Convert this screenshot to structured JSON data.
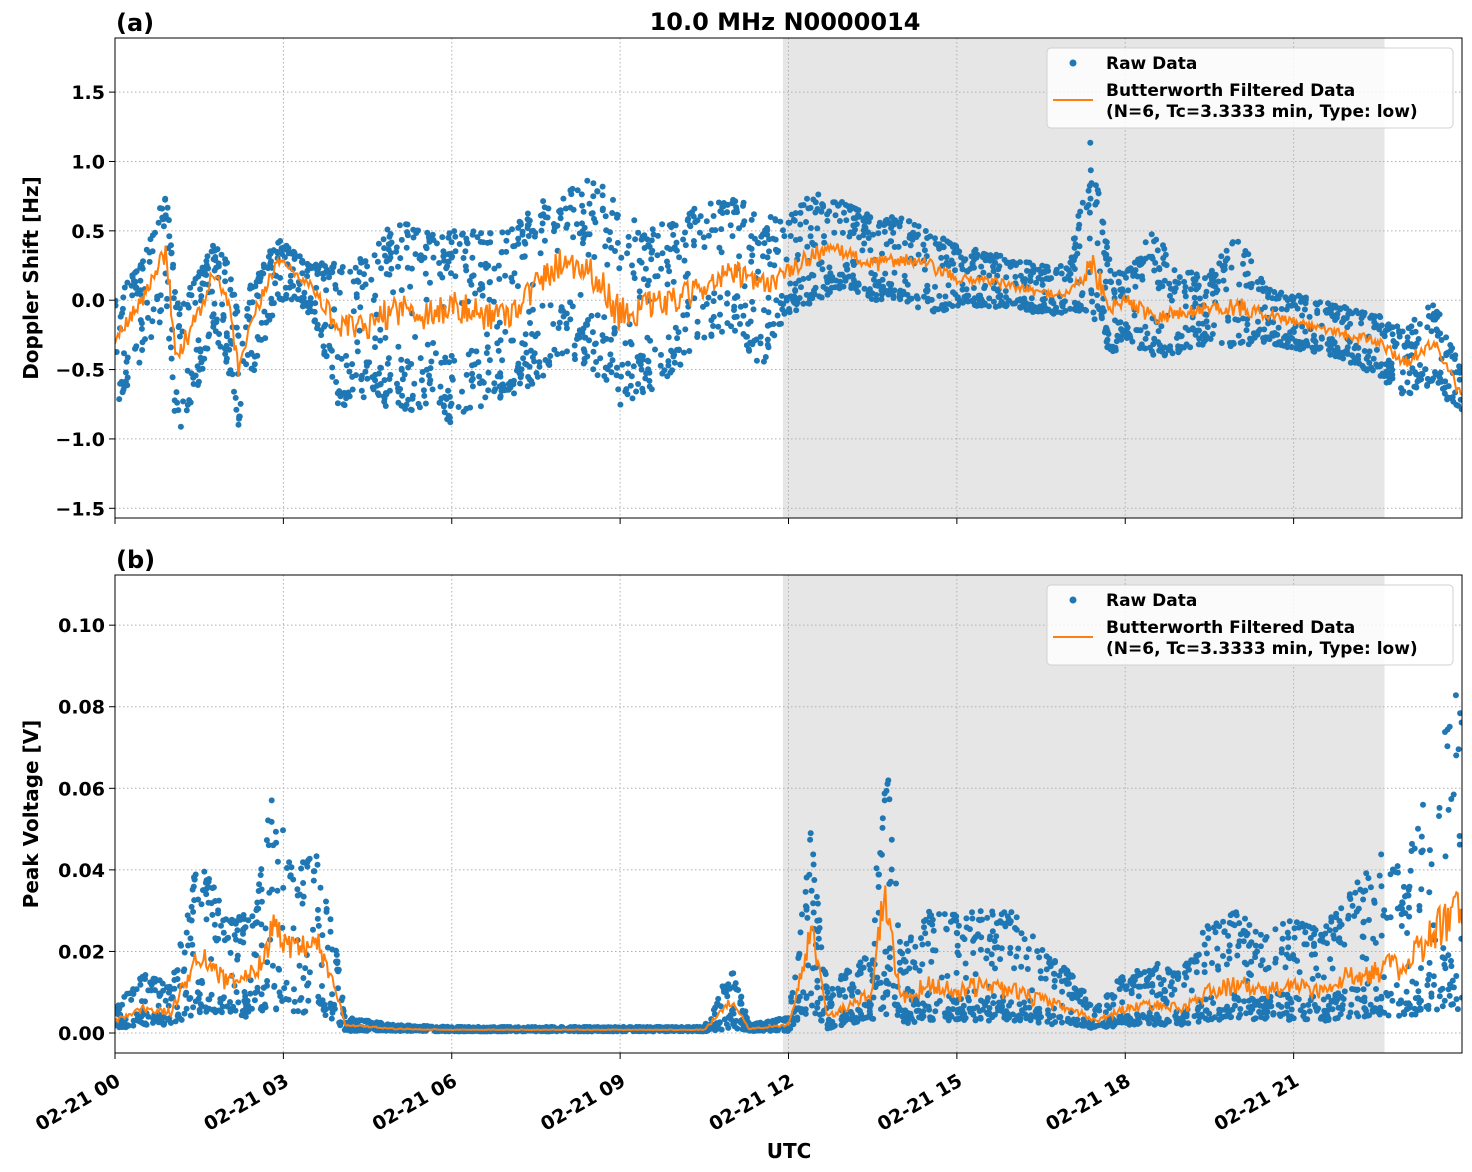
{
  "title": "10.0 MHz N0000014",
  "xlabel": "UTC",
  "x_tick_labels": [
    "02-21 00",
    "02-21 03",
    "02-21 06",
    "02-21 09",
    "02-21 12",
    "02-21 15",
    "02-21 18",
    "02-21 21"
  ],
  "legend": {
    "raw": "Raw Data",
    "filtered_line1": "Butterworth Filtered Data",
    "filtered_line2": "(N=6, Tc=3.3333 min, Type: low)"
  },
  "colors": {
    "raw": "#1f77b4",
    "filtered": "#ff7f0e",
    "shade": "#e6e6e6"
  },
  "chart_data": [
    {
      "type": "scatter+line",
      "panel_label": "(a)",
      "ylabel": "Doppler Shift [Hz]",
      "x_unit": "hours UTC on 02-21",
      "xlim": [
        0,
        24
      ],
      "ylim": [
        -1.57,
        1.89
      ],
      "y_ticks": [
        -1.5,
        -1.0,
        -0.5,
        0.0,
        0.5,
        1.0,
        1.5
      ],
      "y_tick_labels": [
        "−1.5",
        "−1.0",
        "−0.5",
        "0.0",
        "0.5",
        "1.0",
        "1.5"
      ],
      "grid": true,
      "legend_position": "top-right",
      "shaded_region_hours": [
        11.9,
        22.62
      ],
      "hours": [
        0,
        0.5,
        0.75,
        0.9,
        1.1,
        1.5,
        1.75,
        2.0,
        2.2,
        2.5,
        2.9,
        3.5,
        4.0,
        4.5,
        5.0,
        5.5,
        6.0,
        6.5,
        7.0,
        7.5,
        8.0,
        8.5,
        9.0,
        9.5,
        10.0,
        10.5,
        11.0,
        11.5,
        12.0,
        12.5,
        13.0,
        13.5,
        14.0,
        14.5,
        15.0,
        15.5,
        16.0,
        16.5,
        17.0,
        17.4,
        17.75,
        18.0,
        18.5,
        19.0,
        19.5,
        20.0,
        20.5,
        21.0,
        21.5,
        22.0,
        22.5,
        23.0,
        23.5,
        24.0
      ],
      "filtered": [
        -0.3,
        0.0,
        0.25,
        0.35,
        -0.4,
        -0.1,
        0.2,
        0.0,
        -0.5,
        -0.1,
        0.3,
        0.1,
        -0.2,
        -0.2,
        -0.05,
        -0.1,
        -0.05,
        -0.1,
        -0.1,
        0.1,
        0.3,
        0.2,
        -0.1,
        -0.05,
        0.0,
        0.1,
        0.2,
        0.1,
        0.2,
        0.35,
        0.35,
        0.25,
        0.3,
        0.25,
        0.15,
        0.15,
        0.1,
        0.05,
        0.05,
        0.25,
        -0.05,
        0.0,
        -0.1,
        -0.1,
        -0.05,
        -0.05,
        -0.1,
        -0.15,
        -0.2,
        -0.25,
        -0.3,
        -0.45,
        -0.3,
        -0.7
      ],
      "raw_min": [
        -0.8,
        -0.4,
        -0.2,
        -0.1,
        -1.0,
        -0.6,
        -0.2,
        -0.5,
        -0.9,
        -0.5,
        0.0,
        -0.1,
        -0.8,
        -0.7,
        -0.8,
        -0.8,
        -0.9,
        -0.8,
        -0.7,
        -0.6,
        -0.4,
        -0.5,
        -0.8,
        -0.7,
        -0.5,
        -0.3,
        -0.2,
        -0.5,
        -0.1,
        0.0,
        0.1,
        0.0,
        0.0,
        -0.1,
        -0.05,
        -0.05,
        -0.05,
        -0.1,
        -0.1,
        -0.1,
        -0.4,
        -0.3,
        -0.4,
        -0.4,
        -0.3,
        -0.35,
        -0.3,
        -0.35,
        -0.4,
        -0.45,
        -0.55,
        -0.7,
        -0.6,
        -0.85
      ],
      "raw_max": [
        0.0,
        0.3,
        0.6,
        0.85,
        0.0,
        0.2,
        0.4,
        0.3,
        -0.1,
        0.2,
        0.45,
        0.25,
        0.3,
        0.3,
        0.6,
        0.5,
        0.5,
        0.5,
        0.5,
        0.7,
        0.8,
        0.9,
        0.7,
        0.5,
        0.6,
        0.7,
        0.8,
        0.6,
        0.6,
        0.8,
        0.7,
        0.6,
        0.6,
        0.5,
        0.4,
        0.35,
        0.3,
        0.25,
        0.25,
        1.2,
        0.2,
        0.2,
        0.5,
        0.2,
        0.2,
        0.5,
        0.1,
        0.05,
        0.0,
        -0.05,
        -0.1,
        -0.2,
        0.0,
        -0.5
      ]
    },
    {
      "type": "scatter+line",
      "panel_label": "(b)",
      "ylabel": "Peak Voltage [V]",
      "x_unit": "hours UTC on 02-21",
      "xlim": [
        0,
        24
      ],
      "ylim": [
        -0.0049,
        0.1123
      ],
      "y_ticks": [
        0.0,
        0.02,
        0.04,
        0.06,
        0.08,
        0.1
      ],
      "y_tick_labels": [
        "0.00",
        "0.02",
        "0.04",
        "0.06",
        "0.08",
        "0.10"
      ],
      "grid": true,
      "legend_position": "top-right",
      "shaded_region_hours": [
        11.9,
        22.62
      ],
      "hours": [
        0,
        0.5,
        1.0,
        1.5,
        2.0,
        2.5,
        2.8,
        3.2,
        3.6,
        3.9,
        4.1,
        5.0,
        6.0,
        8.0,
        10.5,
        11.0,
        11.3,
        12.0,
        12.4,
        12.7,
        13.0,
        13.5,
        13.7,
        14.0,
        14.5,
        15.0,
        15.5,
        16.0,
        16.5,
        17.0,
        17.5,
        18.0,
        18.5,
        19.0,
        19.5,
        20.0,
        20.5,
        21.0,
        21.5,
        22.0,
        22.5,
        23.0,
        23.5,
        24.0
      ],
      "filtered": [
        0.003,
        0.006,
        0.005,
        0.02,
        0.012,
        0.015,
        0.025,
        0.02,
        0.022,
        0.012,
        0.002,
        0.001,
        0.0008,
        0.0008,
        0.0008,
        0.008,
        0.001,
        0.002,
        0.025,
        0.004,
        0.006,
        0.01,
        0.035,
        0.008,
        0.012,
        0.01,
        0.012,
        0.01,
        0.008,
        0.006,
        0.003,
        0.006,
        0.007,
        0.006,
        0.01,
        0.012,
        0.01,
        0.012,
        0.01,
        0.014,
        0.016,
        0.016,
        0.025,
        0.03
      ],
      "raw_min": [
        0.001,
        0.002,
        0.002,
        0.005,
        0.004,
        0.004,
        0.005,
        0.005,
        0.005,
        0.003,
        0.0005,
        0.0005,
        0.0004,
        0.0004,
        0.0004,
        0.001,
        0.0005,
        0.0005,
        0.005,
        0.001,
        0.002,
        0.003,
        0.005,
        0.002,
        0.003,
        0.003,
        0.003,
        0.003,
        0.002,
        0.002,
        0.001,
        0.002,
        0.002,
        0.002,
        0.003,
        0.003,
        0.003,
        0.003,
        0.003,
        0.003,
        0.004,
        0.004,
        0.005,
        0.006
      ],
      "raw_max": [
        0.006,
        0.015,
        0.012,
        0.045,
        0.028,
        0.03,
        0.06,
        0.04,
        0.045,
        0.025,
        0.004,
        0.002,
        0.0015,
        0.0015,
        0.0015,
        0.017,
        0.002,
        0.004,
        0.05,
        0.01,
        0.015,
        0.02,
        0.08,
        0.02,
        0.03,
        0.03,
        0.03,
        0.03,
        0.022,
        0.015,
        0.007,
        0.015,
        0.018,
        0.015,
        0.028,
        0.03,
        0.025,
        0.028,
        0.025,
        0.035,
        0.045,
        0.04,
        0.07,
        0.09
      ]
    }
  ]
}
